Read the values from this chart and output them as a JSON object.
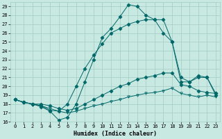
{
  "background_color": "#c8e8e2",
  "grid_color": "#a0ccc4",
  "line_color": "#006868",
  "xlabel": "Humidex (Indice chaleur)",
  "xlim": [
    -0.5,
    23.5
  ],
  "ylim": [
    16,
    29.5
  ],
  "yticks": [
    16,
    17,
    18,
    19,
    20,
    21,
    22,
    23,
    24,
    25,
    26,
    27,
    28,
    29
  ],
  "xticks": [
    0,
    1,
    2,
    3,
    4,
    5,
    6,
    7,
    8,
    9,
    10,
    11,
    12,
    13,
    14,
    15,
    16,
    17,
    18,
    19,
    20,
    21,
    22,
    23
  ],
  "curve_main": [
    18.5,
    18.2,
    18.0,
    17.7,
    17.2,
    16.2,
    16.5,
    18.0,
    20.5,
    23.0,
    25.5,
    26.5,
    27.8,
    29.2,
    29.0,
    28.0,
    27.5,
    27.5,
    25.0,
    21.0,
    20.5,
    21.2,
    21.0,
    19.0
  ],
  "curve_mid": [
    18.5,
    18.2,
    18.0,
    17.8,
    17.3,
    17.2,
    18.0,
    20.0,
    22.0,
    23.5,
    24.8,
    26.0,
    26.5,
    27.0,
    27.3,
    27.5,
    27.5,
    26.0,
    25.0,
    20.5,
    20.5,
    21.0,
    21.0,
    19.2
  ],
  "curve_upper": [
    18.5,
    18.2,
    18.0,
    18.0,
    17.8,
    17.5,
    17.3,
    17.5,
    18.0,
    18.5,
    19.0,
    19.5,
    20.0,
    20.3,
    20.8,
    21.0,
    21.2,
    21.5,
    21.5,
    20.2,
    20.0,
    19.5,
    19.3,
    19.2
  ],
  "curve_lower": [
    18.5,
    18.2,
    18.0,
    17.8,
    17.5,
    17.2,
    17.0,
    17.2,
    17.5,
    17.8,
    18.0,
    18.3,
    18.5,
    18.8,
    19.0,
    19.2,
    19.3,
    19.5,
    19.8,
    19.2,
    19.0,
    18.8,
    19.0,
    18.8
  ]
}
